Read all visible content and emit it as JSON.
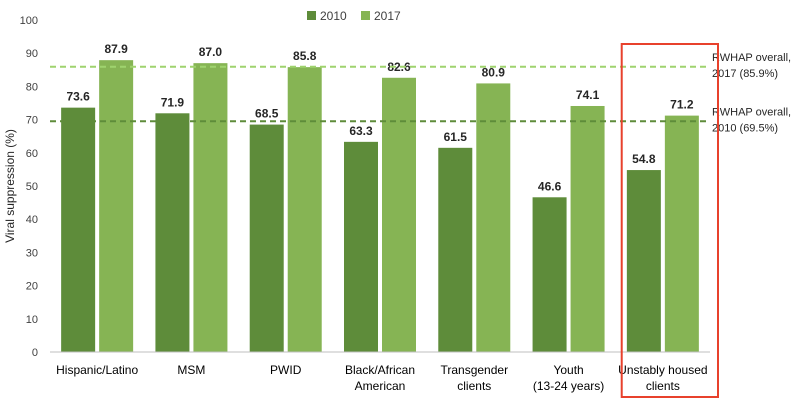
{
  "chart_data": {
    "type": "bar",
    "ylabel": "Viral suppression (%)",
    "ylim": [
      0,
      100
    ],
    "yticks": [
      0,
      10,
      20,
      30,
      40,
      50,
      60,
      70,
      80,
      90,
      100
    ],
    "categories": [
      [
        "Hispanic/Latino"
      ],
      [
        "MSM"
      ],
      [
        "PWID"
      ],
      [
        "Black/African",
        "American"
      ],
      [
        "Transgender",
        "clients"
      ],
      [
        "Youth",
        "(13-24 years)"
      ],
      [
        "Unstably housed",
        "clients"
      ]
    ],
    "series": [
      {
        "name": "2010",
        "color": "#5e8c3a",
        "values": [
          73.6,
          71.9,
          68.5,
          63.3,
          61.5,
          46.6,
          54.8
        ]
      },
      {
        "name": "2017",
        "color": "#86b454",
        "values": [
          87.9,
          87.0,
          85.8,
          82.6,
          80.9,
          74.1,
          71.2
        ]
      }
    ],
    "reference_lines": [
      {
        "value": 85.9,
        "color": "#9fd36e",
        "label": [
          "RWHAP overall,",
          "2017 (85.9%)"
        ]
      },
      {
        "value": 69.5,
        "color": "#5e8c3a",
        "label": [
          "RWHAP overall,",
          "2010 (69.5%)"
        ]
      }
    ],
    "highlight_category_index": 6,
    "highlight_color": "#e8412c",
    "legend_position": "top-center",
    "grid": false
  }
}
